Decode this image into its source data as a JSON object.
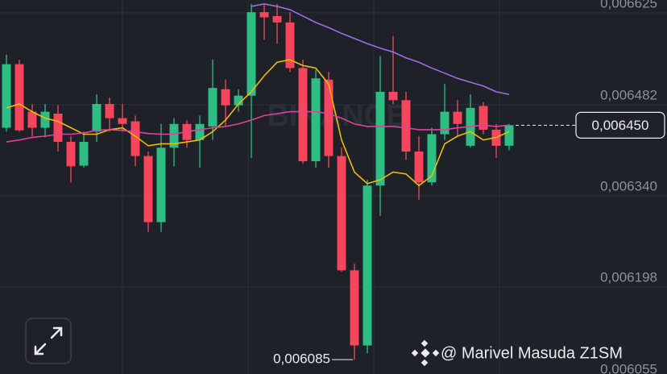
{
  "chart_data": {
    "type": "candlestick",
    "ylim": [
      0.006055,
      0.006645
    ],
    "yticks": [
      {
        "value": 0.006625,
        "label": "0,006625"
      },
      {
        "value": 0.006482,
        "label": "0,006482"
      },
      {
        "value": 0.00634,
        "label": "0,006340"
      },
      {
        "value": 0.006198,
        "label": "0,006198"
      },
      {
        "value": 0.006055,
        "label": "0,006055"
      }
    ],
    "grid": true,
    "up_color": "#2ebd85",
    "down_color": "#f6465d",
    "open": [
      0.006446,
      0.006545,
      0.006471,
      0.006446,
      0.006468,
      0.006424,
      0.006387,
      0.00644,
      0.006483,
      0.006461,
      0.006456,
      0.006402,
      0.006299,
      0.006415,
      0.006452,
      0.006427,
      0.006448,
      0.006506,
      0.006481,
      0.006496,
      0.006626,
      0.00662,
      0.00661,
      0.006539,
      0.006394,
      0.006521,
      0.006402,
      0.006224,
      0.006107,
      0.006356,
      0.006502,
      0.006489,
      0.006409,
      0.006361,
      0.006436,
      0.006471,
      0.006418,
      0.00648,
      0.006443,
      0.006418
    ],
    "high": [
      0.00656,
      0.006552,
      0.006483,
      0.006483,
      0.006481,
      0.006433,
      0.00644,
      0.006498,
      0.006493,
      0.006483,
      0.006465,
      0.006409,
      0.006452,
      0.006461,
      0.006458,
      0.006465,
      0.006552,
      0.006521,
      0.006506,
      0.006639,
      0.006639,
      0.006639,
      0.006626,
      0.006552,
      0.006536,
      0.006533,
      0.006415,
      0.006234,
      0.006365,
      0.006558,
      0.006589,
      0.006502,
      0.006433,
      0.006446,
      0.006514,
      0.006489,
      0.006498,
      0.006486,
      0.006452,
      0.006452
    ],
    "low": [
      0.00644,
      0.00644,
      0.006433,
      0.006431,
      0.006409,
      0.006361,
      0.006384,
      0.006424,
      0.00644,
      0.00644,
      0.006386,
      0.006284,
      0.006284,
      0.006386,
      0.006415,
      0.006384,
      0.006427,
      0.006448,
      0.006471,
      0.006399,
      0.006583,
      0.006577,
      0.006533,
      0.00639,
      0.006384,
      0.006384,
      0.006222,
      0.006085,
      0.006095,
      0.006309,
      0.006483,
      0.006396,
      0.006334,
      0.006356,
      0.006427,
      0.006433,
      0.006415,
      0.006436,
      0.006399,
      0.006411
    ],
    "close": [
      0.006545,
      0.006442,
      0.006446,
      0.006471,
      0.006424,
      0.006386,
      0.006424,
      0.006483,
      0.006461,
      0.006452,
      0.006402,
      0.006299,
      0.006415,
      0.006452,
      0.006427,
      0.006452,
      0.006508,
      0.006481,
      0.006496,
      0.006626,
      0.006618,
      0.00661,
      0.006539,
      0.006394,
      0.006523,
      0.006402,
      0.006224,
      0.006107,
      0.006356,
      0.006502,
      0.006489,
      0.006409,
      0.006361,
      0.006436,
      0.006471,
      0.006452,
      0.006477,
      0.006443,
      0.006418,
      0.00645
    ],
    "series": [
      {
        "color": "#f0b90b",
        "values": [
          0.006477,
          0.006483,
          0.006471,
          0.006461,
          0.006456,
          0.006446,
          0.006436,
          0.006436,
          0.006443,
          0.006446,
          0.006433,
          0.006418,
          0.006421,
          0.006421,
          0.006424,
          0.006427,
          0.00644,
          0.006458,
          0.006483,
          0.006502,
          0.006527,
          0.006548,
          0.006552,
          0.006543,
          0.006539,
          0.006514,
          0.006427,
          0.006377,
          0.006359,
          0.006365,
          0.006377,
          0.006374,
          0.006356,
          0.006371,
          0.006421,
          0.006433,
          0.00644,
          0.006427,
          0.006431,
          0.00644
        ]
      },
      {
        "color": "#e0409e",
        "values": [
          0.006424,
          0.006427,
          0.006431,
          0.006433,
          0.006436,
          0.006436,
          0.006438,
          0.006442,
          0.006443,
          0.006442,
          0.00644,
          0.006437,
          0.006436,
          0.006436,
          0.00644,
          0.006443,
          0.006446,
          0.006448,
          0.006452,
          0.006458,
          0.006465,
          0.006468,
          0.006471,
          0.006471,
          0.006471,
          0.006468,
          0.006461,
          0.006452,
          0.006448,
          0.006448,
          0.006448,
          0.006446,
          0.006443,
          0.006443,
          0.006443,
          0.006446,
          0.006448,
          0.00645,
          0.006448,
          0.00645
        ]
      },
      {
        "color": "#9d6fe0",
        "values": [
          null,
          null,
          null,
          null,
          null,
          null,
          null,
          null,
          null,
          null,
          null,
          null,
          null,
          null,
          null,
          null,
          null,
          null,
          null,
          0.006635,
          0.006639,
          0.006635,
          0.00663,
          0.00662,
          0.00661,
          0.006602,
          0.006593,
          0.006585,
          0.006577,
          0.00657,
          0.006564,
          0.006555,
          0.006548,
          0.006539,
          0.006531,
          0.006523,
          0.006517,
          0.006511,
          0.006502,
          0.006498
        ]
      }
    ],
    "last_price": {
      "value": 0.00645,
      "label": "0,006450"
    },
    "low_marker": {
      "value": 0.006085,
      "label": "0,006085"
    },
    "watermark": "BINANCE",
    "credit": "@ Marivel Masuda Z1SM"
  }
}
